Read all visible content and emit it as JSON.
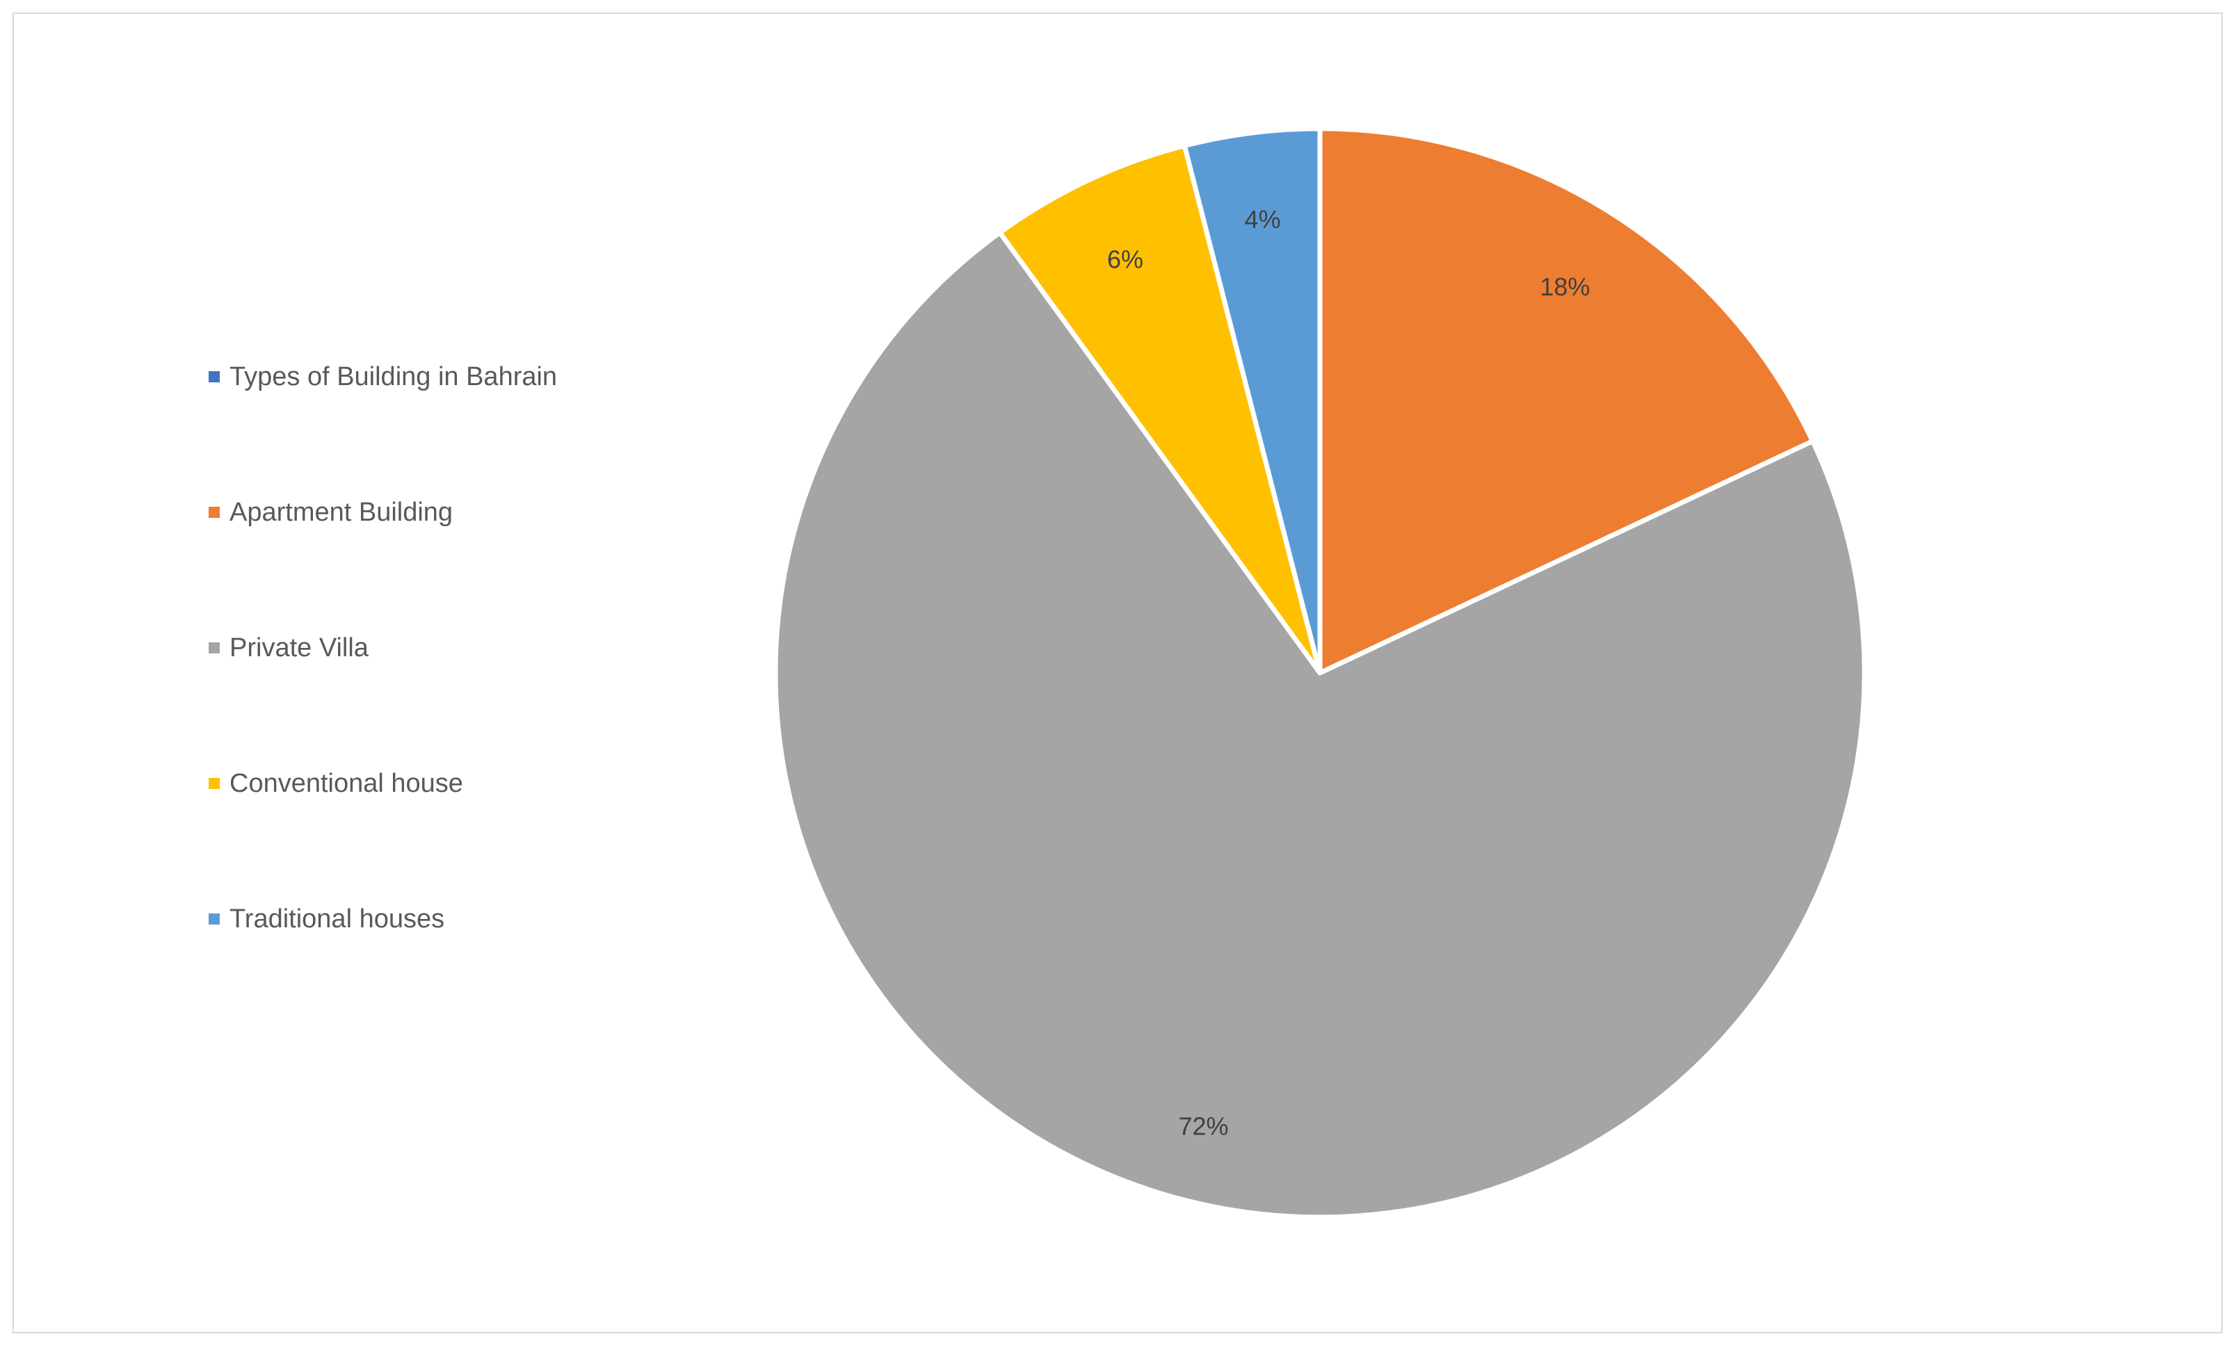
{
  "chart_data": {
    "type": "pie",
    "title": "",
    "legend": [
      "Types of Building in Bahrain",
      "Apartment Building",
      "Private Villa",
      "Conventional house",
      "Traditional houses"
    ],
    "legend_colors": [
      "#4472c4",
      "#ed7d31",
      "#a5a5a5",
      "#ffc000",
      "#5b9bd5"
    ],
    "legend_placement": "left",
    "slices": [
      {
        "label": "Apartment Building",
        "value": 18,
        "display": "18%",
        "color": "#ed7d31"
      },
      {
        "label": "Private Villa",
        "value": 72,
        "display": "72%",
        "color": "#a5a5a5"
      },
      {
        "label": "Conventional house",
        "value": 6,
        "display": "6%",
        "color": "#ffc000"
      },
      {
        "label": "Traditional houses",
        "value": 4,
        "display": "4%",
        "color": "#5b9bd5"
      }
    ]
  }
}
